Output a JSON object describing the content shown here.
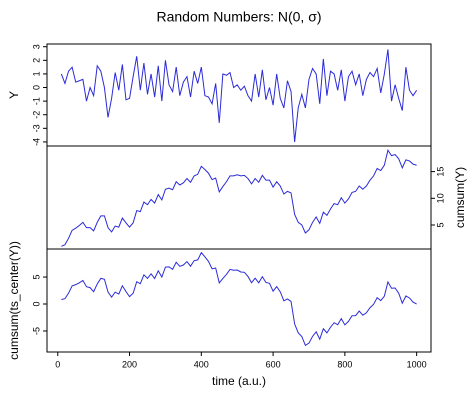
{
  "chart_data": [
    {
      "type": "line",
      "title": "Random Numbers: N(0, σ)",
      "ylabel": "Y",
      "yaxis": "left",
      "color": "#2b2bd9",
      "x": [
        10,
        20,
        30,
        40,
        50,
        60,
        70,
        80,
        90,
        100,
        110,
        120,
        130,
        140,
        150,
        160,
        170,
        180,
        190,
        200,
        210,
        220,
        230,
        240,
        250,
        260,
        270,
        280,
        290,
        300,
        310,
        320,
        330,
        340,
        350,
        360,
        370,
        380,
        390,
        400,
        410,
        420,
        430,
        440,
        450,
        460,
        470,
        480,
        490,
        500,
        510,
        520,
        530,
        540,
        550,
        560,
        570,
        580,
        590,
        600,
        610,
        620,
        630,
        640,
        650,
        660,
        670,
        680,
        690,
        700,
        710,
        720,
        730,
        740,
        750,
        760,
        770,
        780,
        790,
        800,
        810,
        820,
        830,
        840,
        850,
        860,
        870,
        880,
        890,
        900,
        910,
        920,
        930,
        940,
        950,
        960,
        970,
        980,
        990,
        1000
      ],
      "values": [
        1.0,
        0.3,
        1.2,
        1.5,
        0.4,
        0.5,
        0.6,
        -1.0,
        0.0,
        -0.6,
        1.6,
        1.2,
        0.0,
        -2.2,
        -0.8,
        1.1,
        -0.2,
        1.7,
        -0.9,
        -0.8,
        0.8,
        2.3,
        -0.2,
        1.8,
        -0.5,
        1.0,
        -0.7,
        1.6,
        -1.0,
        2.0,
        0.2,
        -0.3,
        1.5,
        -0.6,
        0.4,
        0.8,
        -0.7,
        1.2,
        0.3,
        1.5,
        -0.6,
        -0.7,
        -1.2,
        0.3,
        -2.6,
        1.0,
        0.9,
        1.1,
        0.0,
        0.2,
        -0.2,
        0.1,
        -0.6,
        -1.0,
        1.0,
        -0.7,
        1.3,
        -0.9,
        0.0,
        -1.3,
        1.0,
        -0.8,
        -1.5,
        0.5,
        -0.3,
        -4.0,
        -1.5,
        -0.5,
        -1.5,
        0.6,
        1.4,
        1.0,
        -1.2,
        2.1,
        -0.6,
        1.2,
        1.0,
        -0.2,
        1.3,
        -1.0,
        0.8,
        1.2,
        0.2,
        1.0,
        -0.6,
        0.6,
        1.1,
        0.8,
        1.4,
        -0.4,
        1.0,
        2.8,
        -1.0,
        0.2,
        -0.8,
        -1.7,
        1.5,
        -0.2,
        -0.6,
        -0.2
      ],
      "xlim": [
        -30,
        1040
      ],
      "ylim": [
        -4.3,
        3.2
      ],
      "yticks": [
        -4,
        -3,
        -2,
        -1,
        0,
        1,
        2,
        3
      ]
    },
    {
      "type": "line",
      "ylabel": "cumsum(Y)",
      "yaxis": "right",
      "color": "#2b2bd9",
      "x": [
        10,
        20,
        30,
        40,
        50,
        60,
        70,
        80,
        90,
        100,
        110,
        120,
        130,
        140,
        150,
        160,
        170,
        180,
        190,
        200,
        210,
        220,
        230,
        240,
        250,
        260,
        270,
        280,
        290,
        300,
        310,
        320,
        330,
        340,
        350,
        360,
        370,
        380,
        390,
        400,
        410,
        420,
        430,
        440,
        450,
        460,
        470,
        480,
        490,
        500,
        510,
        520,
        530,
        540,
        550,
        560,
        570,
        580,
        590,
        600,
        610,
        620,
        630,
        640,
        650,
        660,
        670,
        680,
        690,
        700,
        710,
        720,
        730,
        740,
        750,
        760,
        770,
        780,
        790,
        800,
        810,
        820,
        830,
        840,
        850,
        860,
        870,
        880,
        890,
        900,
        910,
        920,
        930,
        940,
        950,
        960,
        970,
        980,
        990,
        1000
      ],
      "values": [
        1.0,
        1.3,
        2.5,
        4.0,
        4.4,
        4.9,
        5.5,
        4.5,
        4.5,
        3.9,
        5.5,
        6.7,
        6.7,
        4.5,
        3.7,
        4.8,
        4.6,
        6.3,
        5.4,
        4.6,
        5.4,
        7.7,
        7.5,
        9.3,
        8.8,
        9.8,
        9.1,
        10.7,
        9.7,
        11.7,
        11.9,
        11.6,
        13.1,
        12.5,
        12.9,
        13.7,
        13.0,
        14.2,
        14.5,
        16.0,
        15.4,
        14.7,
        13.5,
        13.8,
        11.2,
        12.2,
        13.1,
        14.2,
        14.2,
        14.4,
        14.2,
        14.3,
        13.7,
        12.7,
        13.7,
        13.0,
        14.3,
        13.4,
        13.4,
        12.1,
        13.1,
        12.3,
        10.8,
        11.3,
        11.0,
        7.0,
        5.5,
        5.0,
        3.5,
        4.1,
        5.5,
        6.5,
        5.3,
        7.4,
        6.8,
        8.0,
        9.0,
        8.8,
        10.1,
        9.1,
        9.9,
        11.1,
        11.3,
        12.3,
        11.7,
        12.3,
        13.4,
        14.2,
        15.6,
        15.2,
        16.2,
        19.0,
        18.0,
        18.2,
        17.4,
        15.7,
        17.2,
        17.0,
        16.4,
        16.2
      ],
      "xlim": [
        -30,
        1040
      ],
      "ylim": [
        0.5,
        19.8
      ],
      "yticks": [
        5,
        10,
        15
      ]
    },
    {
      "type": "line",
      "ylabel": "cumsum(ts_center(Y))",
      "xlabel": "time (a.u.)",
      "yaxis": "left",
      "color": "#2b2bd9",
      "x": [
        10,
        20,
        30,
        40,
        50,
        60,
        70,
        80,
        90,
        100,
        110,
        120,
        130,
        140,
        150,
        160,
        170,
        180,
        190,
        200,
        210,
        220,
        230,
        240,
        250,
        260,
        270,
        280,
        290,
        300,
        310,
        320,
        330,
        340,
        350,
        360,
        370,
        380,
        390,
        400,
        410,
        420,
        430,
        440,
        450,
        460,
        470,
        480,
        490,
        500,
        510,
        520,
        530,
        540,
        550,
        560,
        570,
        580,
        590,
        600,
        610,
        620,
        630,
        640,
        650,
        660,
        670,
        680,
        690,
        700,
        710,
        720,
        730,
        740,
        750,
        760,
        770,
        780,
        790,
        800,
        810,
        820,
        830,
        840,
        850,
        860,
        870,
        880,
        890,
        900,
        910,
        920,
        930,
        940,
        950,
        960,
        970,
        980,
        990,
        1000
      ],
      "values": [
        0.84,
        0.98,
        2.01,
        3.35,
        3.59,
        3.93,
        4.37,
        3.2,
        3.04,
        2.28,
        3.72,
        4.76,
        4.59,
        2.23,
        1.27,
        2.21,
        1.85,
        3.38,
        2.32,
        1.36,
        2.0,
        4.14,
        3.77,
        5.41,
        4.75,
        5.59,
        4.73,
        6.16,
        5.0,
        6.84,
        6.88,
        6.42,
        7.75,
        6.99,
        7.23,
        7.87,
        7.01,
        8.04,
        8.18,
        9.52,
        8.76,
        7.9,
        6.53,
        6.67,
        3.91,
        4.75,
        5.49,
        6.42,
        6.26,
        6.3,
        5.94,
        5.88,
        5.11,
        3.95,
        4.79,
        3.93,
        5.07,
        4.0,
        3.84,
        2.38,
        3.22,
        2.26,
        0.59,
        0.93,
        0.47,
        -3.69,
        -5.35,
        -6.02,
        -7.68,
        -7.24,
        -6.0,
        -5.16,
        -6.53,
        -4.59,
        -5.35,
        -4.31,
        -3.47,
        -3.84,
        -2.7,
        -3.86,
        -3.22,
        -2.18,
        -2.15,
        -1.31,
        -2.07,
        -1.63,
        -0.69,
        -0.06,
        1.18,
        0.62,
        1.46,
        4.1,
        2.93,
        2.97,
        2.01,
        0.15,
        1.49,
        1.12,
        0.36,
        0.0
      ],
      "xlim": [
        -30,
        1040
      ],
      "ylim": [
        -8.9,
        10.2
      ],
      "yticks": [
        -5,
        0,
        5
      ],
      "xticks": [
        0,
        200,
        400,
        600,
        800,
        1000
      ]
    }
  ]
}
